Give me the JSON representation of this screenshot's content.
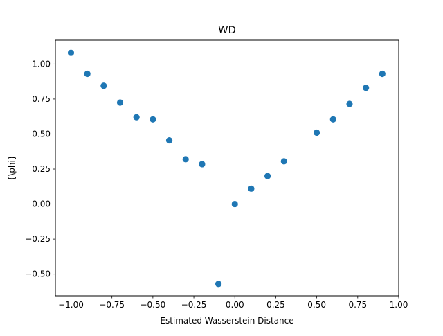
{
  "chart_data": {
    "type": "scatter",
    "title": "WD",
    "xlabel": "Estimated Wasserstein Distance",
    "ylabel": "{\\phi}",
    "xlim": [
      -1.095,
      1.0
    ],
    "ylim": [
      -0.655,
      1.17
    ],
    "grid": false,
    "legend": "none",
    "marker_color": "#1f77b4",
    "x_ticks": [
      -1.0,
      -0.75,
      -0.5,
      -0.25,
      0.0,
      0.25,
      0.5,
      0.75,
      1.0
    ],
    "x_tick_labels": [
      "−1.00",
      "−0.75",
      "−0.50",
      "−0.25",
      "0.00",
      "0.25",
      "0.50",
      "0.75",
      "1.00"
    ],
    "y_ticks": [
      -0.5,
      -0.25,
      0.0,
      0.25,
      0.5,
      0.75,
      1.0
    ],
    "y_tick_labels": [
      "−0.50",
      "−0.25",
      "0.00",
      "0.25",
      "0.50",
      "0.75",
      "1.00"
    ],
    "points": [
      {
        "x": -1.0,
        "y": 1.08
      },
      {
        "x": -0.9,
        "y": 0.93
      },
      {
        "x": -0.8,
        "y": 0.845
      },
      {
        "x": -0.7,
        "y": 0.725
      },
      {
        "x": -0.6,
        "y": 0.62
      },
      {
        "x": -0.5,
        "y": 0.605
      },
      {
        "x": -0.4,
        "y": 0.455
      },
      {
        "x": -0.3,
        "y": 0.32
      },
      {
        "x": -0.2,
        "y": 0.285
      },
      {
        "x": -0.1,
        "y": -0.57
      },
      {
        "x": 0.0,
        "y": 0.0
      },
      {
        "x": 0.1,
        "y": 0.11
      },
      {
        "x": 0.2,
        "y": 0.2
      },
      {
        "x": 0.3,
        "y": 0.305
      },
      {
        "x": 0.5,
        "y": 0.51
      },
      {
        "x": 0.6,
        "y": 0.605
      },
      {
        "x": 0.7,
        "y": 0.715
      },
      {
        "x": 0.8,
        "y": 0.83
      },
      {
        "x": 0.9,
        "y": 0.93
      }
    ]
  }
}
